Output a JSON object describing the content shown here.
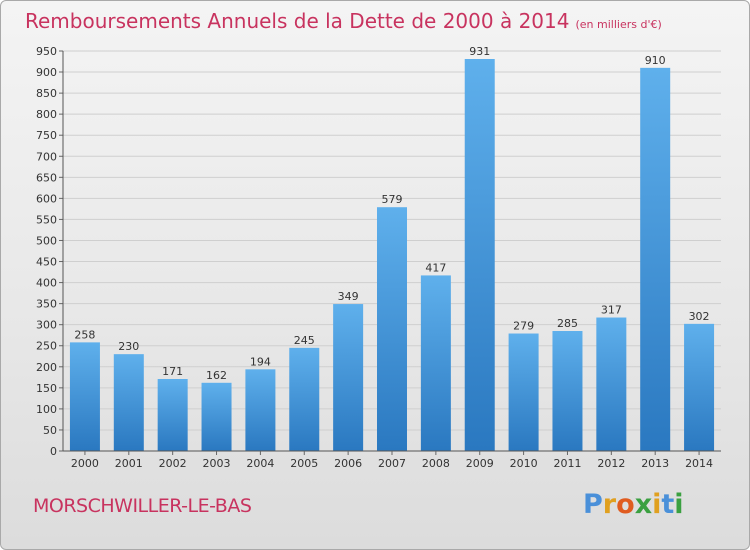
{
  "page": {
    "commune": "MORSCHWILLER-LE-BAS",
    "logo": {
      "letters": [
        "P",
        "r",
        "o",
        "x",
        "i",
        "t",
        "i"
      ],
      "colors": [
        "#4a90d9",
        "#e0a020",
        "#e05c20",
        "#3aa040",
        "#e0a020",
        "#4a90d9",
        "#3aa040"
      ]
    }
  },
  "chart_data": {
    "type": "bar",
    "title": "Remboursements Annuels de la Dette de 2000 à 2014",
    "subtitle": "(en milliers d'€)",
    "categories": [
      "2000",
      "2001",
      "2002",
      "2003",
      "2004",
      "2005",
      "2006",
      "2007",
      "2008",
      "2009",
      "2010",
      "2011",
      "2012",
      "2013",
      "2014"
    ],
    "values": [
      258,
      230,
      171,
      162,
      194,
      245,
      349,
      579,
      417,
      931,
      279,
      285,
      317,
      910,
      302
    ],
    "ylim": [
      0,
      950
    ],
    "yticks": [
      0,
      50,
      100,
      150,
      200,
      250,
      300,
      350,
      400,
      450,
      500,
      550,
      600,
      650,
      700,
      750,
      800,
      850,
      900,
      950
    ],
    "grid": true,
    "bar_color": "#3a8fd8",
    "title_color": "#c8335f"
  }
}
